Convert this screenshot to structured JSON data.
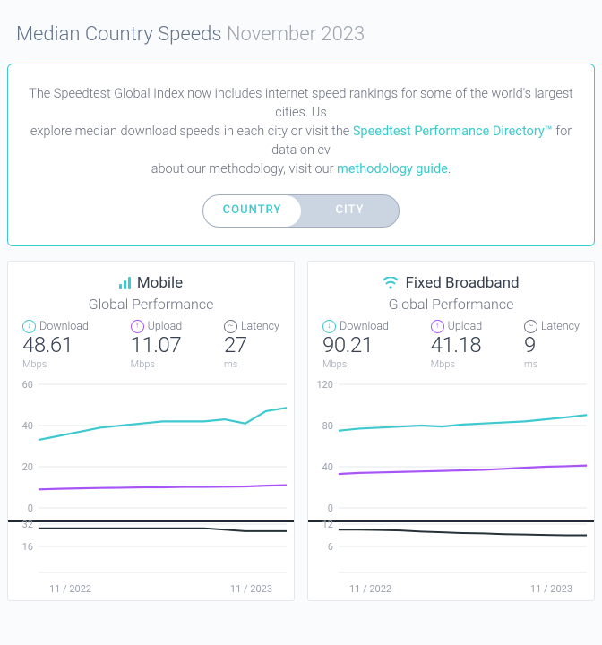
{
  "colors": {
    "accent": "#3ec9cf",
    "download": "#3ec9cf",
    "upload": "#a855f7",
    "latency": "#263238",
    "divider": "#1f2937",
    "grid": "#e5e7eb",
    "axis_text": "#9ca3af",
    "panel_bg": "#ffffff",
    "page_bg": "#fafbfc"
  },
  "title": {
    "label": "Median Country Speeds",
    "period": "November 2023"
  },
  "info": {
    "line1_pre": "The Speedtest Global Index now includes internet speed rankings for some of the world's largest cities. Us",
    "line2_pre": "explore median download speeds in each city or visit the ",
    "link1": "Speedtest Performance Directory™",
    "line2_post": " for data on ev",
    "line3_pre": "about our methodology, visit our ",
    "link2": "methodology guide",
    "line3_post": "."
  },
  "toggle": {
    "country": "COUNTRY",
    "city": "CITY",
    "active": "country"
  },
  "panels": {
    "mobile": {
      "title": "Mobile",
      "subtitle": "Global Performance",
      "metrics": {
        "download": {
          "label": "Download",
          "value": "48.61",
          "unit": "Mbps"
        },
        "upload": {
          "label": "Upload",
          "value": "11.07",
          "unit": "Mbps"
        },
        "latency": {
          "label": "Latency",
          "value": "27",
          "unit": "ms"
        }
      },
      "chart": {
        "type": "line",
        "ylim": [
          0,
          60
        ],
        "yticks": [
          0,
          20,
          40,
          60
        ],
        "series": {
          "download": [
            33,
            35,
            37,
            39,
            40,
            41,
            42,
            42,
            42,
            43,
            41,
            47,
            48.61
          ],
          "upload": [
            9,
            9.3,
            9.5,
            9.7,
            9.8,
            10,
            10,
            10.2,
            10.2,
            10.3,
            10.4,
            10.8,
            11.07
          ]
        },
        "line_colors": {
          "download": "#3ec9cf",
          "upload": "#a855f7"
        },
        "line_width": 2.2,
        "background": "#ffffff"
      },
      "latency_chart": {
        "type": "line",
        "ylim": [
          0,
          32
        ],
        "yticks": [
          16,
          32
        ],
        "series": {
          "latency": [
            29,
            29,
            29,
            29,
            29,
            29,
            29,
            29,
            29,
            28,
            27,
            27,
            27
          ]
        },
        "line_color": "#263238",
        "line_width": 2
      },
      "xaxis": {
        "start": "11 / 2022",
        "end": "11 / 2023"
      }
    },
    "broadband": {
      "title": "Fixed Broadband",
      "subtitle": "Global Performance",
      "metrics": {
        "download": {
          "label": "Download",
          "value": "90.21",
          "unit": "Mbps"
        },
        "upload": {
          "label": "Upload",
          "value": "41.18",
          "unit": "Mbps"
        },
        "latency": {
          "label": "Latency",
          "value": "9",
          "unit": "ms"
        }
      },
      "chart": {
        "type": "line",
        "ylim": [
          0,
          120
        ],
        "yticks": [
          0,
          40,
          80,
          120
        ],
        "series": {
          "download": [
            75,
            77,
            78,
            79,
            80,
            79,
            81,
            82,
            83,
            84,
            86,
            88,
            90.21
          ],
          "upload": [
            33,
            34,
            34.5,
            35,
            35.5,
            36,
            36.5,
            37,
            38,
            39,
            40,
            40.5,
            41.18
          ]
        },
        "line_colors": {
          "download": "#3ec9cf",
          "upload": "#a855f7"
        },
        "line_width": 2.2,
        "background": "#ffffff"
      },
      "latency_chart": {
        "type": "line",
        "ylim": [
          0,
          12
        ],
        "yticks": [
          6,
          12
        ],
        "series": {
          "latency": [
            10.5,
            10.5,
            10.4,
            10.3,
            10,
            9.8,
            9.6,
            9.5,
            9.3,
            9.2,
            9.1,
            9,
            9
          ]
        },
        "line_color": "#263238",
        "line_width": 2
      },
      "xaxis": {
        "start": "11 / 2022",
        "end": "11 / 2023"
      }
    }
  }
}
